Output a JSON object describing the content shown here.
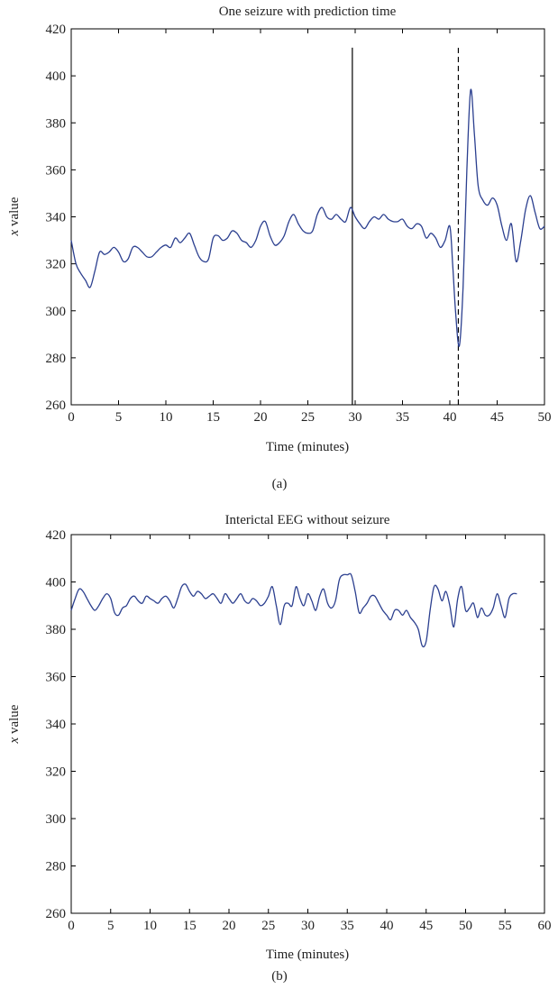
{
  "chart_data": [
    {
      "type": "line",
      "panel_label": "(a)",
      "title": "One seizure with prediction time",
      "xlabel": "Time (minutes)",
      "ylabel_var": "x",
      "ylabel_rest": " value",
      "xlim": [
        0,
        50
      ],
      "ylim": [
        260,
        420
      ],
      "xticks": [
        0,
        5,
        10,
        15,
        20,
        25,
        30,
        35,
        40,
        45,
        50
      ],
      "yticks": [
        260,
        280,
        300,
        320,
        340,
        360,
        380,
        400,
        420
      ],
      "grid": false,
      "series_color": "#2b3f8f",
      "series": [
        {
          "points": [
            [
              0,
              330
            ],
            [
              0.5,
              320
            ],
            [
              1,
              316
            ],
            [
              1.5,
              313
            ],
            [
              2,
              310
            ],
            [
              2.5,
              317
            ],
            [
              3,
              325
            ],
            [
              3.5,
              324
            ],
            [
              4,
              325
            ],
            [
              4.5,
              327
            ],
            [
              5,
              325
            ],
            [
              5.5,
              321
            ],
            [
              6,
              322
            ],
            [
              6.5,
              327
            ],
            [
              7,
              327
            ],
            [
              7.5,
              325
            ],
            [
              8,
              323
            ],
            [
              8.5,
              323
            ],
            [
              9,
              325
            ],
            [
              9.5,
              327
            ],
            [
              10,
              328
            ],
            [
              10.5,
              327
            ],
            [
              11,
              331
            ],
            [
              11.5,
              329
            ],
            [
              12,
              331
            ],
            [
              12.5,
              333
            ],
            [
              13,
              328
            ],
            [
              13.5,
              323
            ],
            [
              14,
              321
            ],
            [
              14.5,
              322
            ],
            [
              15,
              331
            ],
            [
              15.5,
              332
            ],
            [
              16,
              330
            ],
            [
              16.5,
              331
            ],
            [
              17,
              334
            ],
            [
              17.5,
              333
            ],
            [
              18,
              330
            ],
            [
              18.5,
              329
            ],
            [
              19,
              327
            ],
            [
              19.5,
              330
            ],
            [
              20,
              336
            ],
            [
              20.5,
              338
            ],
            [
              21,
              332
            ],
            [
              21.5,
              328
            ],
            [
              22,
              329
            ],
            [
              22.5,
              332
            ],
            [
              23,
              338
            ],
            [
              23.5,
              341
            ],
            [
              24,
              337
            ],
            [
              24.5,
              334
            ],
            [
              25,
              333
            ],
            [
              25.5,
              334
            ],
            [
              26,
              341
            ],
            [
              26.5,
              344
            ],
            [
              27,
              340
            ],
            [
              27.5,
              339
            ],
            [
              28,
              341
            ],
            [
              28.5,
              339
            ],
            [
              29,
              338
            ],
            [
              29.5,
              344
            ],
            [
              30,
              340
            ],
            [
              30.5,
              337
            ],
            [
              31,
              335
            ],
            [
              31.5,
              338
            ],
            [
              32,
              340
            ],
            [
              32.5,
              339
            ],
            [
              33,
              341
            ],
            [
              33.5,
              339
            ],
            [
              34,
              338
            ],
            [
              34.5,
              338
            ],
            [
              35,
              339
            ],
            [
              35.5,
              336
            ],
            [
              36,
              335
            ],
            [
              36.5,
              337
            ],
            [
              37,
              336
            ],
            [
              37.5,
              331
            ],
            [
              38,
              333
            ],
            [
              38.5,
              331
            ],
            [
              39,
              327
            ],
            [
              39.5,
              330
            ],
            [
              40,
              336
            ],
            [
              40.3,
              320
            ],
            [
              40.6,
              300
            ],
            [
              41,
              285
            ],
            [
              41.4,
              310
            ],
            [
              41.8,
              360
            ],
            [
              42.2,
              394
            ],
            [
              42.6,
              375
            ],
            [
              43,
              353
            ],
            [
              43.5,
              347
            ],
            [
              44,
              345
            ],
            [
              44.5,
              348
            ],
            [
              45,
              345
            ],
            [
              45.5,
              336
            ],
            [
              46,
              330
            ],
            [
              46.5,
              337
            ],
            [
              47,
              321
            ],
            [
              47.5,
              330
            ],
            [
              48,
              343
            ],
            [
              48.5,
              349
            ],
            [
              49,
              342
            ],
            [
              49.5,
              335
            ],
            [
              50,
              336
            ]
          ]
        }
      ],
      "vlines": [
        {
          "x": 29.7,
          "y_top": 412,
          "style": "solid"
        },
        {
          "x": 40.9,
          "y_top": 412,
          "style": "dashed"
        }
      ]
    },
    {
      "type": "line",
      "panel_label": "(b)",
      "title": "Interictal EEG without seizure",
      "xlabel": "Time (minutes)",
      "ylabel_var": "x",
      "ylabel_rest": " value",
      "xlim": [
        0,
        60
      ],
      "ylim": [
        260,
        420
      ],
      "xticks": [
        0,
        5,
        10,
        15,
        20,
        25,
        30,
        35,
        40,
        45,
        50,
        55,
        60
      ],
      "yticks": [
        260,
        280,
        300,
        320,
        340,
        360,
        380,
        400,
        420
      ],
      "grid": false,
      "series_color": "#2b3f8f",
      "series": [
        {
          "points": [
            [
              0,
              388
            ],
            [
              0.5,
              393
            ],
            [
              1,
              397
            ],
            [
              1.5,
              396
            ],
            [
              2,
              393
            ],
            [
              2.5,
              390
            ],
            [
              3,
              388
            ],
            [
              3.5,
              390
            ],
            [
              4,
              393
            ],
            [
              4.5,
              395
            ],
            [
              5,
              393
            ],
            [
              5.5,
              387
            ],
            [
              6,
              386
            ],
            [
              6.5,
              389
            ],
            [
              7,
              390
            ],
            [
              7.5,
              393
            ],
            [
              8,
              394
            ],
            [
              8.5,
              392
            ],
            [
              9,
              391
            ],
            [
              9.5,
              394
            ],
            [
              10,
              393
            ],
            [
              10.5,
              392
            ],
            [
              11,
              391
            ],
            [
              11.5,
              393
            ],
            [
              12,
              394
            ],
            [
              12.5,
              392
            ],
            [
              13,
              389
            ],
            [
              13.5,
              393
            ],
            [
              14,
              398
            ],
            [
              14.5,
              399
            ],
            [
              15,
              396
            ],
            [
              15.5,
              394
            ],
            [
              16,
              396
            ],
            [
              16.5,
              395
            ],
            [
              17,
              393
            ],
            [
              17.5,
              394
            ],
            [
              18,
              395
            ],
            [
              18.5,
              393
            ],
            [
              19,
              391
            ],
            [
              19.5,
              395
            ],
            [
              20,
              393
            ],
            [
              20.5,
              391
            ],
            [
              21,
              393
            ],
            [
              21.5,
              395
            ],
            [
              22,
              392
            ],
            [
              22.5,
              391
            ],
            [
              23,
              393
            ],
            [
              23.5,
              392
            ],
            [
              24,
              390
            ],
            [
              24.5,
              391
            ],
            [
              25,
              394
            ],
            [
              25.5,
              398
            ],
            [
              26,
              390
            ],
            [
              26.5,
              382
            ],
            [
              27,
              390
            ],
            [
              27.5,
              391
            ],
            [
              28,
              390
            ],
            [
              28.5,
              398
            ],
            [
              29,
              393
            ],
            [
              29.5,
              390
            ],
            [
              30,
              395
            ],
            [
              30.5,
              392
            ],
            [
              31,
              388
            ],
            [
              31.5,
              394
            ],
            [
              32,
              397
            ],
            [
              32.5,
              391
            ],
            [
              33,
              389
            ],
            [
              33.5,
              392
            ],
            [
              34,
              401
            ],
            [
              34.5,
              403
            ],
            [
              35,
              403
            ],
            [
              35.5,
              403
            ],
            [
              36,
              396
            ],
            [
              36.5,
              387
            ],
            [
              37,
              389
            ],
            [
              37.5,
              391
            ],
            [
              38,
              394
            ],
            [
              38.5,
              394
            ],
            [
              39,
              391
            ],
            [
              39.5,
              388
            ],
            [
              40,
              386
            ],
            [
              40.5,
              384
            ],
            [
              41,
              388
            ],
            [
              41.5,
              388
            ],
            [
              42,
              386
            ],
            [
              42.5,
              388
            ],
            [
              43,
              385
            ],
            [
              43.5,
              383
            ],
            [
              44,
              380
            ],
            [
              44.5,
              373
            ],
            [
              45,
              375
            ],
            [
              45.5,
              388
            ],
            [
              46,
              398
            ],
            [
              46.5,
              397
            ],
            [
              47,
              392
            ],
            [
              47.5,
              396
            ],
            [
              48,
              390
            ],
            [
              48.5,
              381
            ],
            [
              49,
              393
            ],
            [
              49.5,
              398
            ],
            [
              50,
              388
            ],
            [
              50.5,
              389
            ],
            [
              51,
              391
            ],
            [
              51.5,
              385
            ],
            [
              52,
              389
            ],
            [
              52.5,
              386
            ],
            [
              53,
              386
            ],
            [
              53.5,
              389
            ],
            [
              54,
              395
            ],
            [
              54.5,
              390
            ],
            [
              55,
              385
            ],
            [
              55.5,
              393
            ],
            [
              56,
              395
            ],
            [
              56.5,
              395
            ]
          ]
        }
      ],
      "vlines": []
    }
  ]
}
